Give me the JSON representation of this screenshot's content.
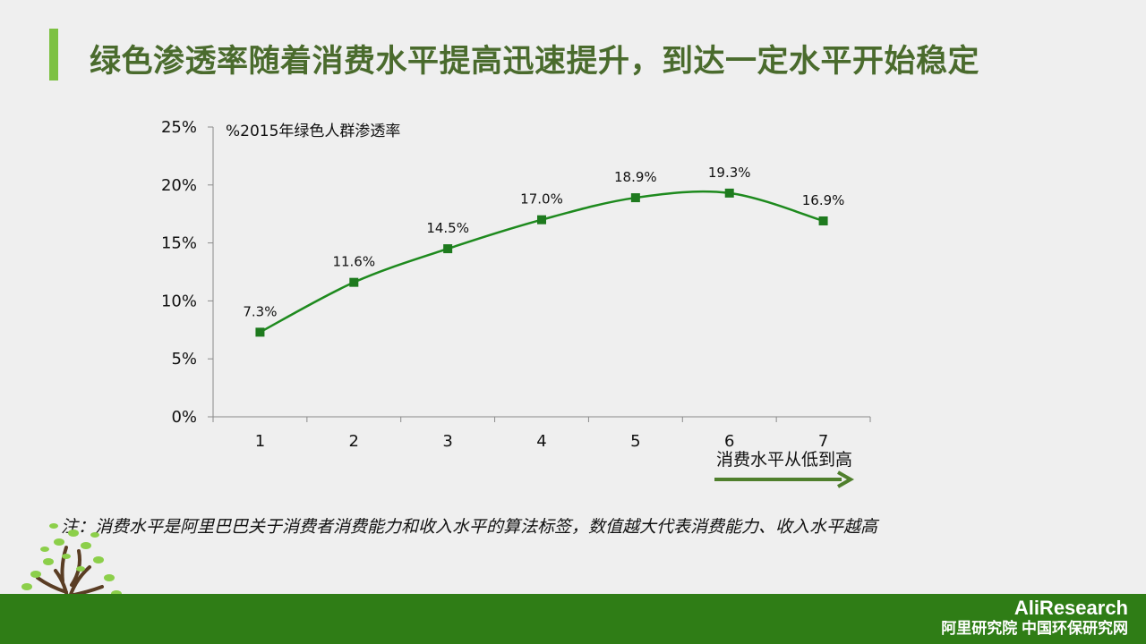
{
  "page": {
    "title": "绿色渗透率随着消费水平提高迅速提升，到达一定水平开始稳定",
    "note": "注：消费水平是阿里巴巴关于消费者消费能力和收入水平的算法标签，数值越大代表消费能力、收入水平越高",
    "brand_line1": "AliResearch",
    "brand_line2": "阿里研究院 中国环保研究网"
  },
  "colors": {
    "accent_bar": "#7dc142",
    "title": "#4a6b2d",
    "line": "#1e8a1e",
    "marker": "#1e7a1e",
    "arrow": "#4f7f2c",
    "footer": "#2f7d16"
  },
  "chart_data": {
    "type": "line",
    "series_label": "%2015年绿色人群渗透率",
    "xlabel": "消费水平从低到高",
    "categories": [
      "1",
      "2",
      "3",
      "4",
      "5",
      "6",
      "7"
    ],
    "values": [
      7.3,
      11.6,
      14.5,
      17.0,
      18.9,
      19.3,
      16.9
    ],
    "data_labels": [
      "7.3%",
      "11.6%",
      "14.5%",
      "17.0%",
      "18.9%",
      "19.3%",
      "16.9%"
    ],
    "yticks": [
      "0%",
      "5%",
      "10%",
      "15%",
      "20%",
      "25%"
    ],
    "ylim": [
      0,
      25
    ],
    "grid": false,
    "smooth": true
  }
}
